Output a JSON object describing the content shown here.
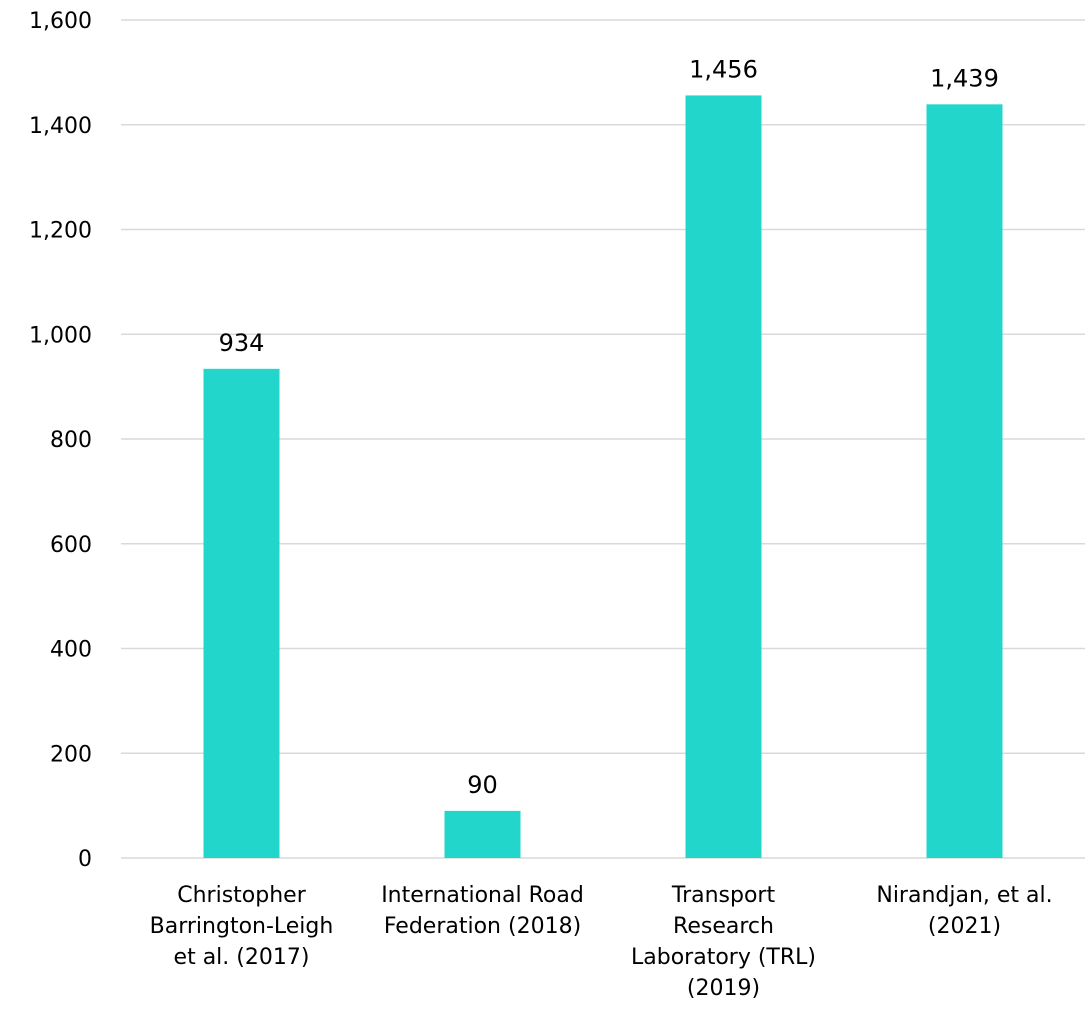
{
  "chart_data": {
    "type": "bar",
    "title": "",
    "xlabel": "",
    "ylabel": "",
    "categories": [
      [
        "Christopher",
        "Barrington-Leigh",
        "et al. (2017)"
      ],
      [
        "International Road",
        "Federation (2018)"
      ],
      [
        "Transport",
        "Research",
        "Laboratory (TRL)",
        "(2019)"
      ],
      [
        "Nirandjan, et al.",
        "(2021)"
      ]
    ],
    "values": [
      934,
      90,
      1456,
      1439
    ],
    "data_labels": [
      "934",
      "90",
      "1,456",
      "1,439"
    ],
    "ylim": [
      0,
      1600
    ],
    "yticks": [
      0,
      200,
      400,
      600,
      800,
      1000,
      1200,
      1400,
      1600
    ],
    "ytick_labels": [
      "0",
      "200",
      "400",
      "600",
      "800",
      "1,000",
      "1,200",
      "1,400",
      "1,600"
    ],
    "grid": true,
    "legend": "none",
    "colors": {
      "bar": "#22d6cc",
      "grid": "#d9d9d9",
      "text": "#000000"
    }
  }
}
